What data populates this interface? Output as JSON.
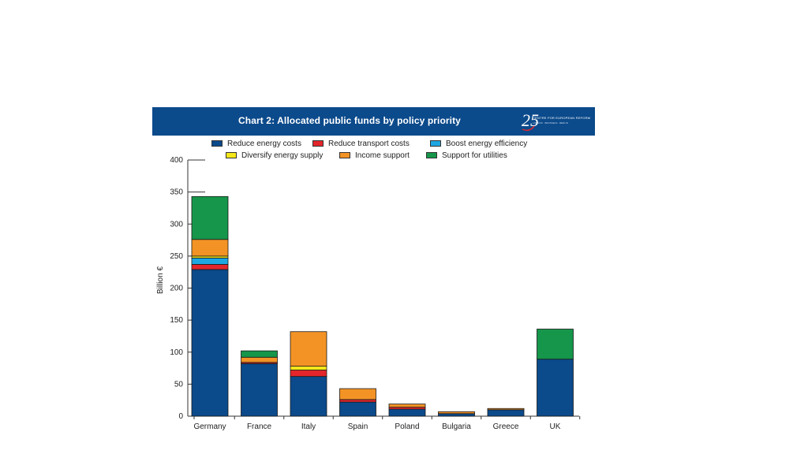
{
  "chart_data": {
    "type": "bar",
    "stacked": true,
    "title": "Chart 2: Allocated public funds by policy priority",
    "ylabel": "Billion €",
    "xlabel": "",
    "ylim": [
      0,
      400
    ],
    "yticks": [
      0,
      50,
      100,
      150,
      200,
      250,
      300,
      350,
      400
    ],
    "grid": false,
    "legend_position": "top",
    "categories": [
      "Germany",
      "France",
      "Italy",
      "Spain",
      "Poland",
      "Bulgaria",
      "Greece",
      "UK"
    ],
    "series": [
      {
        "name": "Reduce energy costs",
        "color": "#0b4a8b",
        "values": [
          229,
          82,
          62,
          22,
          11,
          4,
          10,
          89
        ]
      },
      {
        "name": "Reduce transport costs",
        "color": "#e3262b",
        "values": [
          8,
          2,
          10,
          4,
          3,
          0,
          0,
          0
        ]
      },
      {
        "name": "Boost energy efficiency",
        "color": "#1fa7e1",
        "values": [
          10,
          0,
          0,
          0,
          0,
          0,
          0,
          0
        ]
      },
      {
        "name": "Diversify energy supply",
        "color": "#f5e71a",
        "values": [
          3,
          0,
          6,
          0,
          0,
          0,
          0,
          0
        ]
      },
      {
        "name": "Income support",
        "color": "#f39325",
        "values": [
          26,
          8,
          54,
          17,
          5,
          3,
          2,
          0
        ]
      },
      {
        "name": "Support for utilities",
        "color": "#15964a",
        "values": [
          67,
          10,
          0,
          0,
          0,
          0,
          0,
          47
        ]
      }
    ]
  },
  "logo": {
    "number": "25",
    "text": "CENTRE FOR EUROPEAN REFORM",
    "sub": "LONDON · BRUSSELS · BERLIN"
  }
}
